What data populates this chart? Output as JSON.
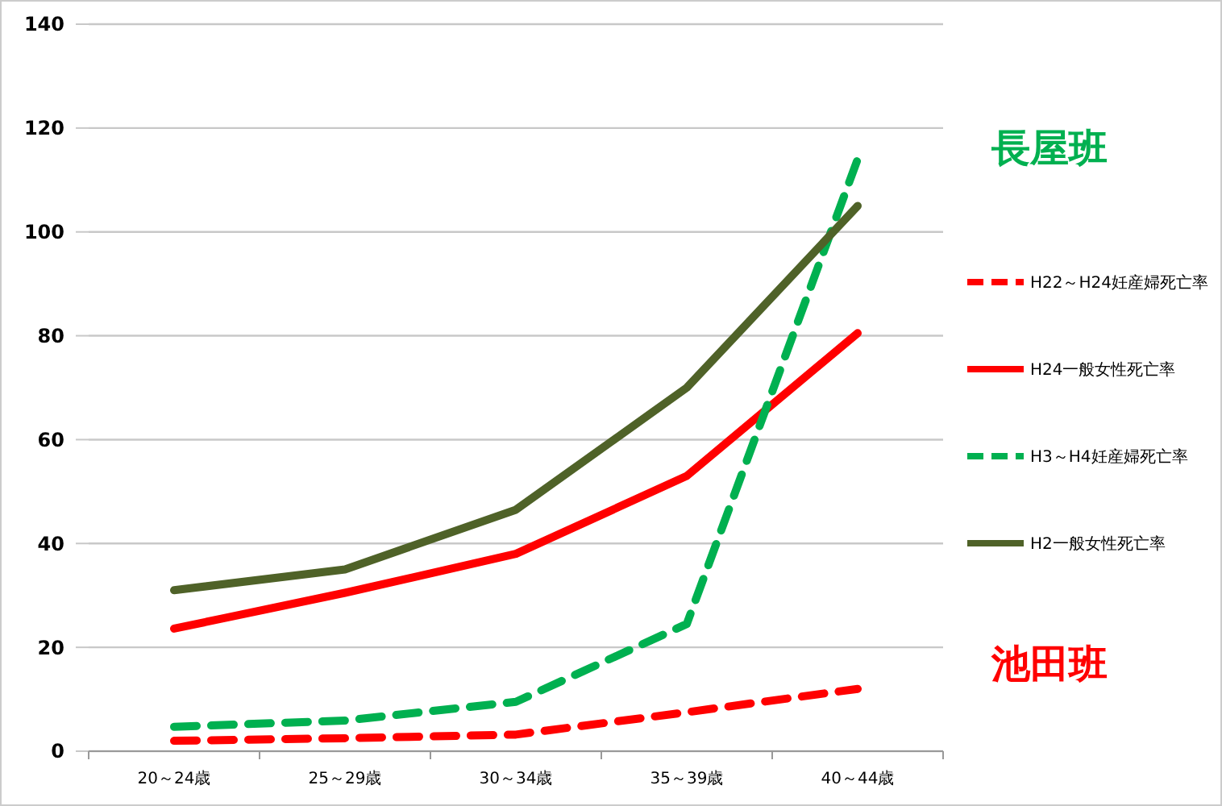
{
  "chart_data": {
    "type": "line",
    "categories": [
      "20～24歳",
      "25～29歳",
      "30～34歳",
      "35～39歳",
      "40～44歳"
    ],
    "series": [
      {
        "name": "H22～H24妊産婦死亡率",
        "color": "#ff0000",
        "line_style": "dashed",
        "values": [
          2,
          2.5,
          3.2,
          7.5,
          12
        ]
      },
      {
        "name": "H24一般女性死亡率",
        "color": "#ff0000",
        "line_style": "solid",
        "values": [
          23.6,
          30.5,
          38,
          53,
          80.5
        ]
      },
      {
        "name": "H3～H4妊産婦死亡率",
        "color": "#00b050",
        "line_style": "dashed",
        "values": [
          4.7,
          5.9,
          9.5,
          24.5,
          114
        ]
      },
      {
        "name": "H2一般女性死亡率",
        "color": "#4f6228",
        "line_style": "solid",
        "values": [
          31,
          35,
          46.5,
          70,
          105
        ]
      }
    ],
    "annotations": [
      "長屋班",
      "池田班"
    ],
    "ylim": [
      0,
      140
    ],
    "yticks": [
      0,
      20,
      40,
      60,
      80,
      100,
      120,
      140
    ],
    "grid": "y",
    "legend": "right",
    "marker": "none"
  }
}
